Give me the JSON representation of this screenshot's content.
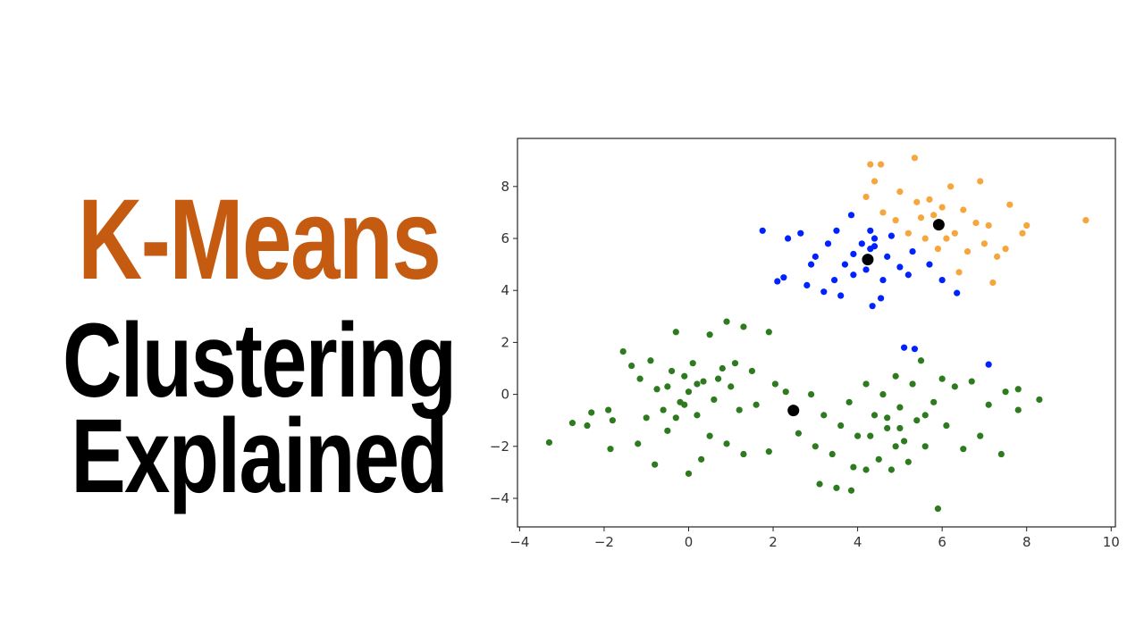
{
  "title": {
    "line1": "K-Means",
    "line2": "Clustering",
    "line3": "Explained",
    "accent_color": "#c55a11",
    "text_color": "#000000"
  },
  "chart_data": {
    "type": "scatter",
    "title": "",
    "xlabel": "",
    "ylabel": "",
    "xlim": [
      -4.05,
      10.1
    ],
    "ylim": [
      -5.1,
      9.85
    ],
    "xticks": [
      -4,
      -2,
      0,
      2,
      4,
      6,
      8,
      10
    ],
    "yticks": [
      -4,
      -2,
      0,
      2,
      4,
      6,
      8
    ],
    "xtick_labels": [
      "−4",
      "−2",
      "0",
      "2",
      "4",
      "6",
      "8",
      "10"
    ],
    "ytick_labels": [
      "−4",
      "−2",
      "0",
      "2",
      "4",
      "6",
      "8"
    ],
    "grid": false,
    "legend": "none",
    "series": [
      {
        "color": "#2e7a1f",
        "points": [
          [
            -3.3,
            -1.85
          ],
          [
            -2.75,
            -1.1
          ],
          [
            -2.4,
            -1.2
          ],
          [
            -2.3,
            -0.7
          ],
          [
            -1.9,
            -0.6
          ],
          [
            -1.85,
            -2.1
          ],
          [
            -1.8,
            -1
          ],
          [
            -1.55,
            1.65
          ],
          [
            -1.35,
            1.1
          ],
          [
            -1.2,
            -1.9
          ],
          [
            -1.15,
            0.6
          ],
          [
            -1,
            -0.9
          ],
          [
            -0.9,
            1.3
          ],
          [
            -0.8,
            -2.7
          ],
          [
            -0.75,
            0.2
          ],
          [
            -0.6,
            -0.6
          ],
          [
            -0.5,
            -1.4
          ],
          [
            -0.4,
            0.9
          ],
          [
            -0.3,
            2.4
          ],
          [
            -0.2,
            -0.3
          ],
          [
            -0.1,
            0.7
          ],
          [
            0,
            -3.05
          ],
          [
            0,
            0.1
          ],
          [
            0.1,
            1.2
          ],
          [
            0.2,
            -0.8
          ],
          [
            0.3,
            -2.5
          ],
          [
            0.35,
            0.5
          ],
          [
            0.5,
            2.3
          ],
          [
            0.5,
            -1.6
          ],
          [
            0.6,
            -0.2
          ],
          [
            0.8,
            1.0
          ],
          [
            0.9,
            2.8
          ],
          [
            0.9,
            -1.9
          ],
          [
            1.0,
            0.3
          ],
          [
            1.2,
            -0.6
          ],
          [
            1.3,
            2.6
          ],
          [
            1.3,
            -2.3
          ],
          [
            1.5,
            0.9
          ],
          [
            1.6,
            -0.4
          ],
          [
            1.9,
            2.4
          ],
          [
            1.9,
            -2.2
          ],
          [
            2.05,
            0.4
          ],
          [
            2.3,
            0.1
          ],
          [
            2.6,
            -1.5
          ],
          [
            -0.5,
            0.3
          ],
          [
            0.2,
            0.4
          ],
          [
            -0.3,
            -0.9
          ],
          [
            0.7,
            0.6
          ],
          [
            -0.1,
            -0.4
          ],
          [
            1.1,
            1.2
          ],
          [
            2.9,
            0.0
          ],
          [
            3.0,
            -2.0
          ],
          [
            3.1,
            -3.45
          ],
          [
            3.2,
            -0.8
          ],
          [
            3.4,
            -2.3
          ],
          [
            3.5,
            -3.6
          ],
          [
            3.6,
            -1.2
          ],
          [
            3.8,
            -0.3
          ],
          [
            3.85,
            -3.7
          ],
          [
            3.9,
            -2.8
          ],
          [
            4.0,
            -1.6
          ],
          [
            4.2,
            0.4
          ],
          [
            4.2,
            -2.9
          ],
          [
            4.4,
            -0.8
          ],
          [
            4.5,
            -2.5
          ],
          [
            4.6,
            0.0
          ],
          [
            4.7,
            -1.3
          ],
          [
            4.8,
            -2.9
          ],
          [
            4.9,
            0.7
          ],
          [
            5.0,
            -0.5
          ],
          [
            5.1,
            -1.8
          ],
          [
            5.2,
            -2.6
          ],
          [
            5.3,
            0.4
          ],
          [
            5.4,
            -1.0
          ],
          [
            5.5,
            1.3
          ],
          [
            5.6,
            -2.0
          ],
          [
            5.8,
            -0.3
          ],
          [
            5.9,
            -4.4
          ],
          [
            6.0,
            0.6
          ],
          [
            6.1,
            -1.2
          ],
          [
            6.3,
            0.3
          ],
          [
            6.5,
            -2.1
          ],
          [
            6.7,
            0.5
          ],
          [
            6.9,
            -1.6
          ],
          [
            7.1,
            -0.4
          ],
          [
            7.4,
            -2.3
          ],
          [
            7.5,
            0.1
          ],
          [
            7.8,
            0.2
          ],
          [
            7.8,
            -0.6
          ],
          [
            8.3,
            -0.2
          ],
          [
            4.7,
            -0.9
          ],
          [
            5.0,
            -1.3
          ],
          [
            4.3,
            -1.6
          ],
          [
            5.6,
            -0.8
          ],
          [
            4.9,
            -2.0
          ]
        ]
      },
      {
        "color": "#0022ff",
        "points": [
          [
            1.75,
            6.3
          ],
          [
            2.1,
            4.35
          ],
          [
            2.25,
            4.5
          ],
          [
            2.35,
            6.0
          ],
          [
            2.65,
            6.2
          ],
          [
            2.8,
            4.2
          ],
          [
            2.9,
            5.0
          ],
          [
            3.0,
            5.3
          ],
          [
            3.2,
            3.95
          ],
          [
            3.3,
            5.8
          ],
          [
            3.45,
            4.4
          ],
          [
            3.5,
            6.3
          ],
          [
            3.6,
            3.8
          ],
          [
            3.7,
            5.0
          ],
          [
            3.85,
            6.9
          ],
          [
            3.9,
            4.6
          ],
          [
            4.1,
            5.8
          ],
          [
            4.2,
            4.8
          ],
          [
            4.3,
            6.3
          ],
          [
            4.35,
            3.4
          ],
          [
            4.4,
            5.7
          ],
          [
            4.55,
            3.7
          ],
          [
            4.6,
            4.4
          ],
          [
            4.7,
            5.3
          ],
          [
            4.8,
            6.1
          ],
          [
            5.0,
            4.9
          ],
          [
            5.2,
            4.6
          ],
          [
            5.3,
            5.5
          ],
          [
            5.7,
            5.0
          ],
          [
            6.0,
            4.4
          ],
          [
            6.35,
            3.9
          ],
          [
            5.1,
            1.8
          ],
          [
            5.35,
            1.75
          ],
          [
            7.1,
            1.15
          ],
          [
            4.4,
            6.0
          ],
          [
            4.3,
            5.6
          ],
          [
            3.9,
            5.4
          ]
        ]
      },
      {
        "color": "#f5a63c",
        "points": [
          [
            4.3,
            8.85
          ],
          [
            4.55,
            8.85
          ],
          [
            5.35,
            9.1
          ],
          [
            4.2,
            7.6
          ],
          [
            4.4,
            8.2
          ],
          [
            4.6,
            7.0
          ],
          [
            4.9,
            6.7
          ],
          [
            5.0,
            7.8
          ],
          [
            5.2,
            6.2
          ],
          [
            5.4,
            7.4
          ],
          [
            5.6,
            6.0
          ],
          [
            5.7,
            7.5
          ],
          [
            5.9,
            5.6
          ],
          [
            6.0,
            7.2
          ],
          [
            6.2,
            8.0
          ],
          [
            6.3,
            6.2
          ],
          [
            6.4,
            4.7
          ],
          [
            6.5,
            7.1
          ],
          [
            6.6,
            5.5
          ],
          [
            6.8,
            6.6
          ],
          [
            6.9,
            8.2
          ],
          [
            7.0,
            5.8
          ],
          [
            7.1,
            6.5
          ],
          [
            7.2,
            4.3
          ],
          [
            7.3,
            5.3
          ],
          [
            7.5,
            5.6
          ],
          [
            7.6,
            7.3
          ],
          [
            7.9,
            6.2
          ],
          [
            8.0,
            6.5
          ],
          [
            9.4,
            6.7
          ],
          [
            5.5,
            6.8
          ],
          [
            6.1,
            6.0
          ],
          [
            5.8,
            6.9
          ]
        ]
      },
      {
        "color": "#000000",
        "role": "centroids",
        "points": [
          [
            2.48,
            -0.62
          ],
          [
            4.24,
            5.19
          ],
          [
            5.92,
            6.53
          ]
        ]
      }
    ]
  }
}
